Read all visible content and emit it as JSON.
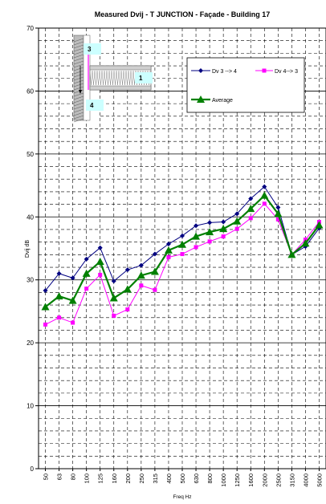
{
  "chart_data": {
    "type": "line",
    "title": "Measured Dvij - T JUNCTION - Façade - Building 17",
    "xlabel": "Freq Hz",
    "ylabel": "Dvij dB",
    "ylim": [
      0,
      70
    ],
    "yticks": [
      0,
      10,
      20,
      30,
      40,
      50,
      60,
      70
    ],
    "categories": [
      "50",
      "63",
      "80",
      "100",
      "125",
      "160",
      "200",
      "250",
      "315",
      "400",
      "500",
      "630",
      "800",
      "1000",
      "1250",
      "1600",
      "2000",
      "2500",
      "3150",
      "4000",
      "5000"
    ],
    "grid": true,
    "legend_position": "top-right",
    "series": [
      {
        "name": "Dv 3 --> 4",
        "color": "#000080",
        "marker": "diamond",
        "values": [
          28.3,
          31.0,
          30.3,
          33.3,
          35.1,
          29.8,
          31.6,
          32.3,
          34.1,
          35.7,
          37.0,
          38.6,
          39.1,
          39.2,
          40.5,
          42.9,
          44.8,
          41.5,
          34.0,
          35.3,
          38.2
        ]
      },
      {
        "name": "Dv 4--> 3",
        "color": "#ff00ff",
        "marker": "square",
        "values": [
          22.9,
          24.0,
          23.2,
          28.6,
          30.8,
          24.3,
          25.3,
          29.1,
          28.4,
          33.6,
          34.1,
          35.2,
          36.1,
          36.9,
          38.1,
          39.8,
          42.1,
          39.6,
          34.0,
          36.4,
          39.2
        ]
      },
      {
        "name": "Average",
        "color": "#008000",
        "marker": "triangle",
        "values": [
          25.7,
          27.4,
          26.7,
          31.0,
          32.9,
          27.1,
          28.5,
          30.7,
          31.3,
          34.7,
          35.6,
          36.9,
          37.6,
          38.1,
          39.3,
          41.3,
          43.4,
          40.5,
          34.0,
          35.8,
          38.7
        ]
      }
    ],
    "inset": {
      "labels": [
        "3",
        "1",
        "4"
      ]
    }
  }
}
